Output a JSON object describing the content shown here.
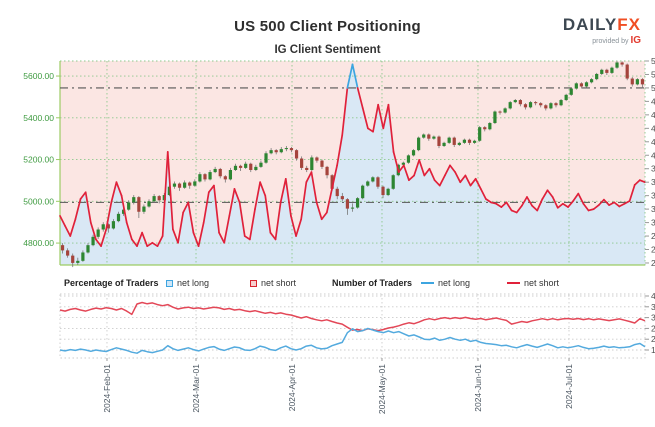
{
  "header": {
    "title": "US 500 Client Positioning",
    "subtitle": "IG Client Sentiment",
    "logo": {
      "brand": "DAILY",
      "brand_accent": "FX",
      "provided_by": "provided by",
      "provider": "IG"
    }
  },
  "legend": {
    "percentage_title": "Percentage of Traders",
    "number_title": "Number of Traders",
    "net_long_label": "net long",
    "net_short_label": "net short"
  },
  "colors": {
    "background_net_short_zone": "#fbe6e3",
    "background_net_long_zone": "#d9e8f5",
    "candle_up": "#2d8632",
    "candle_down": "#a5443c",
    "wick": "#777777",
    "pct_line_short": "#e0213a",
    "pct_line_long": "#3da5e0",
    "grid_green": "#8cc88c",
    "price_label_green": "#3f9b41",
    "axis_label_gray": "#4d4d4d",
    "dashdot_gray": "#555555",
    "count_short_line": "#e34757",
    "count_long_line": "#53aade",
    "bottom_grid_gray": "#cccccc",
    "date_label": "#4a5560"
  },
  "chart_data": [
    {
      "type": "candlestick+line",
      "description": "US 500 price candles with percentage of traders net long/short",
      "price_axis": {
        "side": "left",
        "ticks": [
          "4800.00",
          "5000.00",
          "5200.00",
          "5400.00",
          "5600.00"
        ],
        "tick_values": [
          4800,
          5000,
          5200,
          5400,
          5600
        ],
        "ylim": [
          4695,
          5672
        ]
      },
      "pct_axis": {
        "side": "right",
        "ticks": [
          "24%",
          "26%",
          "28%",
          "30%",
          "32%",
          "34%",
          "36%",
          "38%",
          "40%",
          "42%",
          "44%",
          "46%",
          "48%",
          "50%",
          "52%",
          "54%"
        ],
        "tick_values": [
          24,
          26,
          28,
          30,
          32,
          34,
          36,
          38,
          40,
          42,
          44,
          46,
          48,
          50,
          52,
          54
        ],
        "ylim": [
          23.7,
          54
        ]
      },
      "reference_lines_pct": [
        50,
        33
      ],
      "x_ticks": [
        "2024-Feb-01",
        "2024-Mar-01",
        "2024-Apr-01",
        "2024-May-01",
        "2024-Jun-01",
        "2024-Jul-01"
      ],
      "month_fracs": [
        0.0803,
        0.2325,
        0.3966,
        0.5504,
        0.7145,
        0.8701
      ],
      "grid": true,
      "candles": [
        [
          4790,
          4800,
          4750,
          4765
        ],
        [
          4765,
          4775,
          4730,
          4740
        ],
        [
          4740,
          4750,
          4685,
          4705
        ],
        [
          4705,
          4730,
          4695,
          4715
        ],
        [
          4715,
          4765,
          4710,
          4755
        ],
        [
          4755,
          4800,
          4750,
          4790
        ],
        [
          4790,
          4840,
          4785,
          4830
        ],
        [
          4830,
          4875,
          4820,
          4865
        ],
        [
          4865,
          4900,
          4855,
          4890
        ],
        [
          4890,
          4895,
          4850,
          4870
        ],
        [
          4870,
          4915,
          4865,
          4905
        ],
        [
          4905,
          4950,
          4900,
          4940
        ],
        [
          4940,
          4975,
          4930,
          4960
        ],
        [
          4960,
          5005,
          4955,
          4995
        ],
        [
          4995,
          5030,
          4985,
          5020
        ],
        [
          5020,
          5025,
          4920,
          4950
        ],
        [
          4950,
          4985,
          4940,
          4975
        ],
        [
          4975,
          5010,
          4970,
          5000
        ],
        [
          5000,
          5035,
          4995,
          5025
        ],
        [
          5025,
          5030,
          4990,
          5005
        ],
        [
          5005,
          5040,
          5000,
          5030
        ],
        [
          5030,
          5080,
          5025,
          5070
        ],
        [
          5070,
          5095,
          5060,
          5085
        ],
        [
          5085,
          5090,
          5050,
          5065
        ],
        [
          5065,
          5100,
          5060,
          5090
        ],
        [
          5090,
          5095,
          5060,
          5075
        ],
        [
          5075,
          5105,
          5070,
          5095
        ],
        [
          5095,
          5140,
          5090,
          5130
        ],
        [
          5130,
          5135,
          5095,
          5105
        ],
        [
          5105,
          5150,
          5100,
          5140
        ],
        [
          5140,
          5165,
          5135,
          5155
        ],
        [
          5155,
          5160,
          5110,
          5120
        ],
        [
          5120,
          5125,
          5090,
          5105
        ],
        [
          5105,
          5160,
          5100,
          5150
        ],
        [
          5150,
          5180,
          5145,
          5170
        ],
        [
          5170,
          5175,
          5145,
          5160
        ],
        [
          5160,
          5190,
          5155,
          5180
        ],
        [
          5180,
          5185,
          5140,
          5150
        ],
        [
          5150,
          5175,
          5145,
          5165
        ],
        [
          5165,
          5195,
          5160,
          5185
        ],
        [
          5185,
          5240,
          5180,
          5230
        ],
        [
          5230,
          5255,
          5225,
          5245
        ],
        [
          5245,
          5250,
          5225,
          5235
        ],
        [
          5235,
          5260,
          5230,
          5250
        ],
        [
          5250,
          5265,
          5240,
          5255
        ],
        [
          5255,
          5260,
          5235,
          5245
        ],
        [
          5245,
          5250,
          5195,
          5205
        ],
        [
          5205,
          5215,
          5150,
          5160
        ],
        [
          5160,
          5170,
          5140,
          5150
        ],
        [
          5150,
          5220,
          5145,
          5210
        ],
        [
          5210,
          5215,
          5185,
          5195
        ],
        [
          5195,
          5200,
          5155,
          5165
        ],
        [
          5165,
          5170,
          5110,
          5125
        ],
        [
          5125,
          5130,
          5050,
          5060
        ],
        [
          5060,
          5070,
          5010,
          5025
        ],
        [
          5025,
          5040,
          5000,
          5010
        ],
        [
          5010,
          5015,
          4935,
          4965
        ],
        [
          4965,
          4990,
          4950,
          4970
        ],
        [
          4970,
          5020,
          4965,
          5015
        ],
        [
          5015,
          5080,
          5010,
          5075
        ],
        [
          5075,
          5100,
          5070,
          5095
        ],
        [
          5095,
          5120,
          5090,
          5115
        ],
        [
          5115,
          5120,
          5060,
          5070
        ],
        [
          5070,
          5075,
          5015,
          5030
        ],
        [
          5030,
          5065,
          5025,
          5060
        ],
        [
          5060,
          5130,
          5055,
          5125
        ],
        [
          5125,
          5180,
          5120,
          5175
        ],
        [
          5175,
          5190,
          5170,
          5185
        ],
        [
          5185,
          5225,
          5180,
          5220
        ],
        [
          5220,
          5250,
          5215,
          5245
        ],
        [
          5245,
          5310,
          5240,
          5305
        ],
        [
          5305,
          5325,
          5300,
          5320
        ],
        [
          5320,
          5325,
          5290,
          5300
        ],
        [
          5300,
          5315,
          5295,
          5310
        ],
        [
          5310,
          5315,
          5255,
          5265
        ],
        [
          5265,
          5285,
          5260,
          5280
        ],
        [
          5280,
          5310,
          5275,
          5305
        ],
        [
          5305,
          5310,
          5260,
          5270
        ],
        [
          5270,
          5285,
          5265,
          5280
        ],
        [
          5280,
          5300,
          5275,
          5295
        ],
        [
          5295,
          5300,
          5270,
          5280
        ],
        [
          5280,
          5295,
          5275,
          5290
        ],
        [
          5290,
          5360,
          5285,
          5355
        ],
        [
          5355,
          5360,
          5335,
          5345
        ],
        [
          5345,
          5380,
          5340,
          5375
        ],
        [
          5375,
          5435,
          5370,
          5430
        ],
        [
          5430,
          5435,
          5415,
          5425
        ],
        [
          5425,
          5450,
          5420,
          5445
        ],
        [
          5445,
          5480,
          5440,
          5475
        ],
        [
          5475,
          5490,
          5470,
          5485
        ],
        [
          5485,
          5490,
          5455,
          5465
        ],
        [
          5465,
          5470,
          5440,
          5450
        ],
        [
          5450,
          5480,
          5445,
          5475
        ],
        [
          5475,
          5480,
          5460,
          5470
        ],
        [
          5470,
          5475,
          5450,
          5460
        ],
        [
          5460,
          5465,
          5435,
          5445
        ],
        [
          5445,
          5475,
          5440,
          5470
        ],
        [
          5470,
          5475,
          5450,
          5460
        ],
        [
          5460,
          5490,
          5455,
          5485
        ],
        [
          5485,
          5515,
          5480,
          5510
        ],
        [
          5510,
          5545,
          5505,
          5540
        ],
        [
          5540,
          5570,
          5535,
          5565
        ],
        [
          5565,
          5570,
          5540,
          5550
        ],
        [
          5550,
          5575,
          5545,
          5570
        ],
        [
          5570,
          5590,
          5565,
          5585
        ],
        [
          5585,
          5615,
          5580,
          5610
        ],
        [
          5610,
          5635,
          5605,
          5630
        ],
        [
          5630,
          5635,
          5605,
          5615
        ],
        [
          5615,
          5645,
          5610,
          5640
        ],
        [
          5640,
          5670,
          5635,
          5665
        ],
        [
          5665,
          5670,
          5645,
          5655
        ],
        [
          5655,
          5660,
          5580,
          5588
        ],
        [
          5588,
          5595,
          5550,
          5560
        ],
        [
          5560,
          5590,
          5555,
          5585
        ],
        [
          5585,
          5590,
          5540,
          5560
        ]
      ],
      "pct_net_long": [
        31,
        29.5,
        28,
        30.5,
        33.5,
        34.5,
        30,
        27.5,
        26.5,
        29,
        33,
        36,
        34,
        30,
        27.5,
        26.5,
        28.5,
        26.5,
        27,
        26.5,
        28,
        40.5,
        29,
        27,
        31.5,
        33,
        28.5,
        26.5,
        30,
        34.5,
        35.5,
        28.5,
        27,
        31,
        35,
        33,
        28,
        27.5,
        32,
        36,
        34,
        28.5,
        27.5,
        33,
        36.5,
        31,
        28,
        30.5,
        36,
        37.5,
        33,
        30.5,
        31.5,
        35,
        38.5,
        43,
        50,
        53.5,
        50,
        47,
        44,
        43.5,
        47.5,
        44,
        47.5,
        40.5,
        37.5,
        38.5,
        36.3,
        37,
        39.3,
        37,
        38,
        36.3,
        35.5,
        37,
        38.5,
        37.5,
        36,
        37,
        35.5,
        36.5,
        35,
        33.5,
        33,
        32.8,
        32.3,
        33,
        31.8,
        31.5,
        32.5,
        33.8,
        32.5,
        31.8,
        33.5,
        34.8,
        33.8,
        32.2,
        32.8,
        32.3,
        33.2,
        34.3,
        32.8,
        31.8,
        32,
        32.6,
        33.4,
        32.6,
        33,
        32.4,
        32.8,
        33.2,
        35.6,
        36.3,
        36
      ]
    },
    {
      "type": "line",
      "description": "Number of traders net long and net short",
      "y_axis": {
        "side": "right",
        "ticks": [
          "1500",
          "2000",
          "2500",
          "3000",
          "3500",
          "4000"
        ],
        "tick_values": [
          1500,
          2000,
          2500,
          3000,
          3500,
          4000
        ],
        "ylim": [
          1130,
          4093
        ]
      },
      "x_ticks": [
        "2024-Feb-01",
        "2024-Mar-01",
        "2024-Apr-01",
        "2024-May-01",
        "2024-Jun-01",
        "2024-Jul-01"
      ],
      "month_fracs": [
        0.0803,
        0.2325,
        0.3966,
        0.5504,
        0.7145,
        0.8701
      ],
      "grid": true,
      "series": [
        {
          "name": "net short",
          "color": "#e34757",
          "values": [
            3350,
            3300,
            3380,
            3420,
            3350,
            3300,
            3380,
            3440,
            3400,
            3460,
            3420,
            3350,
            3420,
            3300,
            3150,
            3630,
            3700,
            3640,
            3680,
            3600,
            3550,
            3600,
            3480,
            3400,
            3450,
            3480,
            3420,
            3450,
            3400,
            3440,
            3480,
            3450,
            3380,
            3420,
            3350,
            3380,
            3320,
            3280,
            3320,
            3260,
            3200,
            3240,
            3180,
            3220,
            3160,
            3120,
            3050,
            2980,
            3040,
            2960,
            2900,
            2850,
            2900,
            2820,
            2750,
            2700,
            2550,
            2420,
            2450,
            2400,
            2480,
            2440,
            2400,
            2450,
            2520,
            2560,
            2620,
            2700,
            2760,
            2720,
            2800,
            2900,
            2950,
            2900,
            2960,
            3000,
            2950,
            3000,
            2960,
            3010,
            2960,
            2920,
            2960,
            2900,
            2940,
            2980,
            2920,
            2870,
            2700,
            2760,
            2820,
            2780,
            2850,
            2900,
            2950,
            2900,
            2950,
            2900,
            2940,
            2960,
            2920,
            2960,
            2910,
            2950,
            2900,
            2940,
            2900,
            2860,
            2900,
            2940,
            2880,
            2820,
            2750,
            2950,
            2850
          ]
        },
        {
          "name": "net long",
          "color": "#53aade",
          "values": [
            1500,
            1460,
            1520,
            1480,
            1540,
            1500,
            1440,
            1500,
            1460,
            1430,
            1520,
            1600,
            1540,
            1480,
            1400,
            1350,
            1480,
            1420,
            1380,
            1440,
            1500,
            1700,
            1560,
            1480,
            1540,
            1600,
            1520,
            1460,
            1540,
            1620,
            1660,
            1540,
            1480,
            1560,
            1640,
            1600,
            1500,
            1480,
            1560,
            1680,
            1620,
            1520,
            1480,
            1600,
            1680,
            1560,
            1500,
            1560,
            1680,
            1720,
            1600,
            1550,
            1580,
            1700,
            1780,
            1850,
            2300,
            2480,
            2350,
            2400,
            2500,
            2420,
            2350,
            2300,
            2380,
            2300,
            2350,
            2250,
            2150,
            2200,
            2100,
            2000,
            1980,
            2050,
            1950,
            2000,
            2080,
            2000,
            1950,
            2000,
            1900,
            1950,
            1850,
            1800,
            1780,
            1750,
            1700,
            1720,
            1650,
            1600,
            1680,
            1750,
            1680,
            1620,
            1700,
            1780,
            1700,
            1600,
            1650,
            1600,
            1650,
            1700,
            1620,
            1560,
            1580,
            1620,
            1680,
            1620,
            1650,
            1600,
            1620,
            1650,
            1750,
            1800,
            1650
          ]
        }
      ]
    }
  ]
}
